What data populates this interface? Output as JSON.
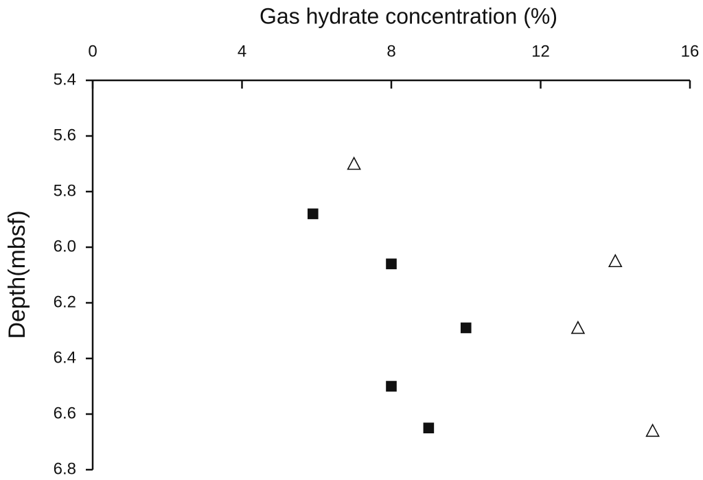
{
  "chart_data": {
    "type": "scatter",
    "title": "Gas hydrate concentration (%)",
    "y_label": "Depth(mbsf)",
    "xlim": [
      0,
      16
    ],
    "xticks": [
      0,
      4,
      8,
      12,
      16
    ],
    "ylim": [
      5.4,
      6.8
    ],
    "yticks": [
      5.4,
      5.6,
      5.8,
      {
        "value": 6,
        "label": "6.0"
      },
      6.2,
      6.4,
      6.6,
      6.8
    ],
    "y_inverted": true,
    "x_axis_position": "top",
    "grid": false,
    "series": [
      {
        "marker": "square",
        "color": "#111111",
        "filled": true,
        "x": [
          5.9,
          8,
          10,
          8,
          9
        ],
        "values": [
          5.88,
          6.06,
          6.29,
          6.5,
          6.65
        ]
      },
      {
        "marker": "triangle",
        "color": "#111111",
        "filled": false,
        "x": [
          7,
          14,
          13,
          15
        ],
        "values": [
          5.7,
          6.05,
          6.29,
          6.66
        ]
      }
    ]
  }
}
